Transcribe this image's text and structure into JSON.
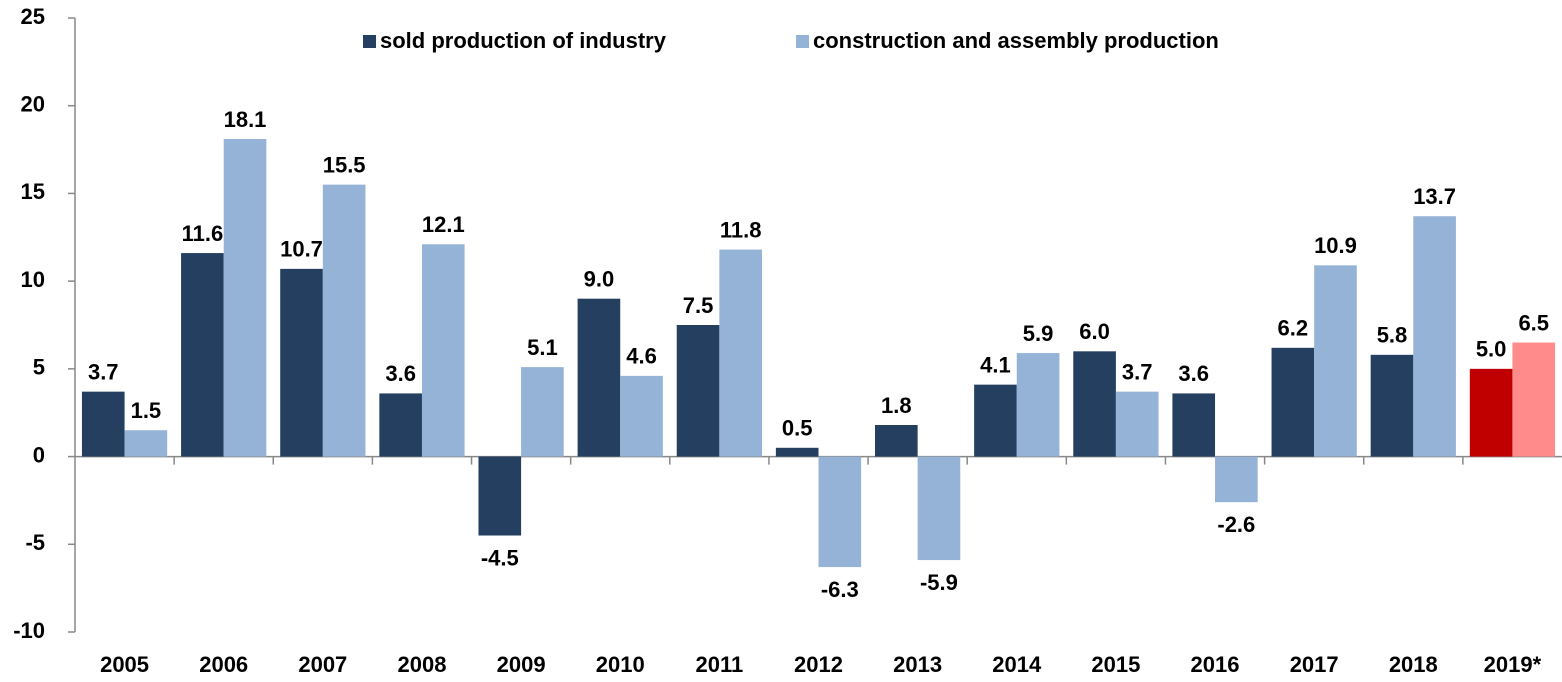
{
  "chart_data": {
    "type": "bar",
    "categories": [
      "2005",
      "2006",
      "2007",
      "2008",
      "2009",
      "2010",
      "2011",
      "2012",
      "2013",
      "2014",
      "2015",
      "2016",
      "2017",
      "2018",
      "2019*"
    ],
    "series": [
      {
        "name": "sold production of industry",
        "color": "#243f60",
        "colors": [
          "#243f60",
          "#243f60",
          "#243f60",
          "#243f60",
          "#243f60",
          "#243f60",
          "#243f60",
          "#243f60",
          "#243f60",
          "#243f60",
          "#243f60",
          "#243f60",
          "#243f60",
          "#243f60",
          "#c00000"
        ],
        "values": [
          3.7,
          11.6,
          10.7,
          3.6,
          -4.5,
          9.0,
          7.5,
          0.5,
          1.8,
          4.1,
          6.0,
          3.6,
          6.2,
          5.8,
          5.0
        ],
        "value_labels": [
          "3.7",
          "11.6",
          "10.7",
          "3.6",
          "-4.5",
          "9.0",
          "7.5",
          "0.5",
          "1.8",
          "4.1",
          "6.0",
          "3.6",
          "6.2",
          "5.8",
          "5.0"
        ]
      },
      {
        "name": "construction and assembly production",
        "color": "#95b3d7",
        "colors": [
          "#95b3d7",
          "#95b3d7",
          "#95b3d7",
          "#95b3d7",
          "#95b3d7",
          "#95b3d7",
          "#95b3d7",
          "#95b3d7",
          "#95b3d7",
          "#95b3d7",
          "#95b3d7",
          "#95b3d7",
          "#95b3d7",
          "#95b3d7",
          "#ff8b8b"
        ],
        "values": [
          1.5,
          18.1,
          15.5,
          12.1,
          5.1,
          4.6,
          11.8,
          -6.3,
          -5.9,
          5.9,
          3.7,
          -2.6,
          10.9,
          13.7,
          6.5
        ],
        "value_labels": [
          "1.5",
          "18.1",
          "15.5",
          "12.1",
          "5.1",
          "4.6",
          "11.8",
          "-6.3",
          "-5.9",
          "5.9",
          "3.7",
          "-2.6",
          "10.9",
          "13.7",
          "6.5"
        ]
      }
    ],
    "ylim": [
      -10,
      25
    ],
    "yticks": [
      -10,
      -5,
      0,
      5,
      10,
      15,
      20,
      25
    ],
    "grid": false,
    "legend": "top"
  }
}
